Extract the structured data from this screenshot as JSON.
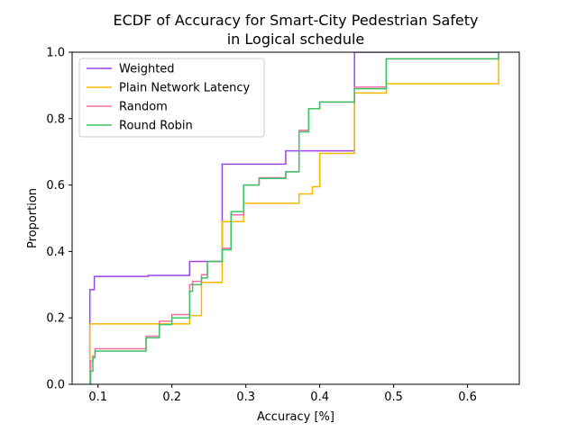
{
  "chart_data": {
    "type": "line",
    "subtype": "ecdf-step",
    "title_lines": [
      "ECDF of Accuracy for Smart-City Pedestrian Safety",
      "in Logical schedule"
    ],
    "xlabel": "Accuracy [%]",
    "ylabel": "Proportion",
    "xlim": [
      0.065,
      0.67
    ],
    "ylim": [
      0.0,
      1.0
    ],
    "xticks": [
      {
        "value": 0.1,
        "label": "0.1"
      },
      {
        "value": 0.2,
        "label": "0.2"
      },
      {
        "value": 0.3,
        "label": "0.3"
      },
      {
        "value": 0.4,
        "label": "0.4"
      },
      {
        "value": 0.5,
        "label": "0.5"
      },
      {
        "value": 0.6,
        "label": "0.6"
      }
    ],
    "yticks": [
      {
        "value": 0.0,
        "label": "0.0"
      },
      {
        "value": 0.2,
        "label": "0.2"
      },
      {
        "value": 0.4,
        "label": "0.4"
      },
      {
        "value": 0.6,
        "label": "0.6"
      },
      {
        "value": 0.8,
        "label": "0.8"
      },
      {
        "value": 1.0,
        "label": "1.0"
      }
    ],
    "grid": false,
    "legend_position": "upper-left",
    "series": [
      {
        "name": "Weighted",
        "color": "#9b45e8",
        "x": [
          0.089,
          0.089,
          0.095,
          0.095,
          0.168,
          0.168,
          0.224,
          0.224,
          0.268,
          0.268,
          0.354,
          0.354,
          0.447,
          0.447,
          0.642
        ],
        "y": [
          0.0,
          0.285,
          0.285,
          0.325,
          0.325,
          0.328,
          0.328,
          0.37,
          0.37,
          0.663,
          0.663,
          0.703,
          0.703,
          1.0,
          1.0
        ]
      },
      {
        "name": "Plain Network Latency",
        "color": "#f5b800",
        "x": [
          0.089,
          0.089,
          0.224,
          0.224,
          0.24,
          0.24,
          0.268,
          0.268,
          0.297,
          0.297,
          0.372,
          0.372,
          0.39,
          0.39,
          0.4,
          0.4,
          0.447,
          0.447,
          0.49,
          0.49,
          0.642,
          0.642
        ],
        "y": [
          0.0,
          0.182,
          0.182,
          0.207,
          0.207,
          0.307,
          0.307,
          0.49,
          0.49,
          0.545,
          0.545,
          0.573,
          0.573,
          0.595,
          0.595,
          0.695,
          0.695,
          0.877,
          0.877,
          0.905,
          0.905,
          1.0
        ]
      },
      {
        "name": "Random",
        "color": "#f26fa5",
        "x": [
          0.09,
          0.09,
          0.093,
          0.093,
          0.096,
          0.096,
          0.165,
          0.165,
          0.183,
          0.183,
          0.2,
          0.2,
          0.224,
          0.224,
          0.228,
          0.228,
          0.24,
          0.24,
          0.248,
          0.248,
          0.268,
          0.268,
          0.28,
          0.28,
          0.297,
          0.297,
          0.318,
          0.318,
          0.354,
          0.354,
          0.372,
          0.372,
          0.385,
          0.385,
          0.4,
          0.4,
          0.447,
          0.447,
          0.49,
          0.49,
          0.642,
          0.642
        ],
        "y": [
          0.0,
          0.07,
          0.07,
          0.085,
          0.085,
          0.107,
          0.107,
          0.145,
          0.145,
          0.19,
          0.19,
          0.21,
          0.21,
          0.3,
          0.3,
          0.31,
          0.31,
          0.33,
          0.33,
          0.37,
          0.37,
          0.41,
          0.41,
          0.51,
          0.51,
          0.6,
          0.6,
          0.622,
          0.622,
          0.64,
          0.64,
          0.765,
          0.765,
          0.83,
          0.83,
          0.85,
          0.85,
          0.895,
          0.895,
          0.98,
          0.98,
          1.0
        ]
      },
      {
        "name": "Round Robin",
        "color": "#3cc466",
        "x": [
          0.09,
          0.09,
          0.093,
          0.093,
          0.096,
          0.096,
          0.165,
          0.165,
          0.183,
          0.183,
          0.2,
          0.2,
          0.224,
          0.224,
          0.228,
          0.228,
          0.24,
          0.24,
          0.248,
          0.248,
          0.268,
          0.268,
          0.28,
          0.28,
          0.297,
          0.297,
          0.318,
          0.318,
          0.354,
          0.354,
          0.372,
          0.372,
          0.385,
          0.385,
          0.4,
          0.4,
          0.447,
          0.447,
          0.49,
          0.49,
          0.642,
          0.642
        ],
        "y": [
          0.0,
          0.04,
          0.04,
          0.08,
          0.08,
          0.1,
          0.1,
          0.14,
          0.14,
          0.18,
          0.18,
          0.2,
          0.2,
          0.28,
          0.28,
          0.3,
          0.3,
          0.32,
          0.32,
          0.37,
          0.37,
          0.405,
          0.405,
          0.52,
          0.52,
          0.6,
          0.6,
          0.62,
          0.62,
          0.64,
          0.64,
          0.76,
          0.76,
          0.83,
          0.83,
          0.85,
          0.85,
          0.89,
          0.89,
          0.98,
          0.98,
          1.0
        ]
      }
    ]
  }
}
